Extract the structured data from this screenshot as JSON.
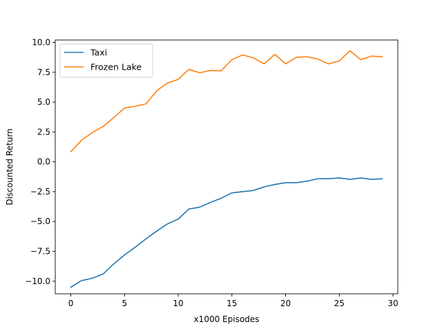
{
  "chart_data": {
    "type": "line",
    "title": "",
    "xlabel": "x1000 Episodes",
    "ylabel": "Discounted Return",
    "xlim": [
      -1.45,
      30.45
    ],
    "ylim": [
      -11.05,
      10.2
    ],
    "xticks": [
      0,
      5,
      10,
      15,
      20,
      25,
      30
    ],
    "yticks": [
      -10.0,
      -7.5,
      -5.0,
      -2.5,
      0.0,
      2.5,
      5.0,
      7.5,
      10.0
    ],
    "ytick_labels": [
      "−10.0",
      "−7.5",
      "−5.0",
      "−2.5",
      "0.0",
      "2.5",
      "5.0",
      "7.5",
      "10.0"
    ],
    "grid": false,
    "legend_position": "top-left",
    "x": [
      0,
      1,
      2,
      3,
      4,
      5,
      6,
      7,
      8,
      9,
      10,
      11,
      12,
      13,
      14,
      15,
      16,
      17,
      18,
      19,
      20,
      21,
      22,
      23,
      24,
      25,
      26,
      27,
      28,
      29
    ],
    "series": [
      {
        "name": "Taxi",
        "color": "#1f77b4",
        "values": [
          -10.5,
          -9.95,
          -9.75,
          -9.4,
          -8.55,
          -7.8,
          -7.15,
          -6.45,
          -5.8,
          -5.2,
          -4.8,
          -3.95,
          -3.8,
          -3.4,
          -3.05,
          -2.6,
          -2.5,
          -2.4,
          -2.1,
          -1.9,
          -1.75,
          -1.75,
          -1.62,
          -1.42,
          -1.42,
          -1.35,
          -1.47,
          -1.35,
          -1.47,
          -1.42
        ]
      },
      {
        "name": "Frozen Lake",
        "color": "#ff7f0e",
        "values": [
          0.85,
          1.8,
          2.45,
          2.95,
          3.7,
          4.5,
          4.65,
          4.85,
          5.95,
          6.6,
          6.9,
          7.75,
          7.45,
          7.65,
          7.62,
          8.55,
          8.95,
          8.7,
          8.2,
          9.0,
          8.2,
          8.75,
          8.8,
          8.6,
          8.2,
          8.45,
          9.3,
          8.55,
          8.85,
          8.8
        ]
      }
    ]
  }
}
